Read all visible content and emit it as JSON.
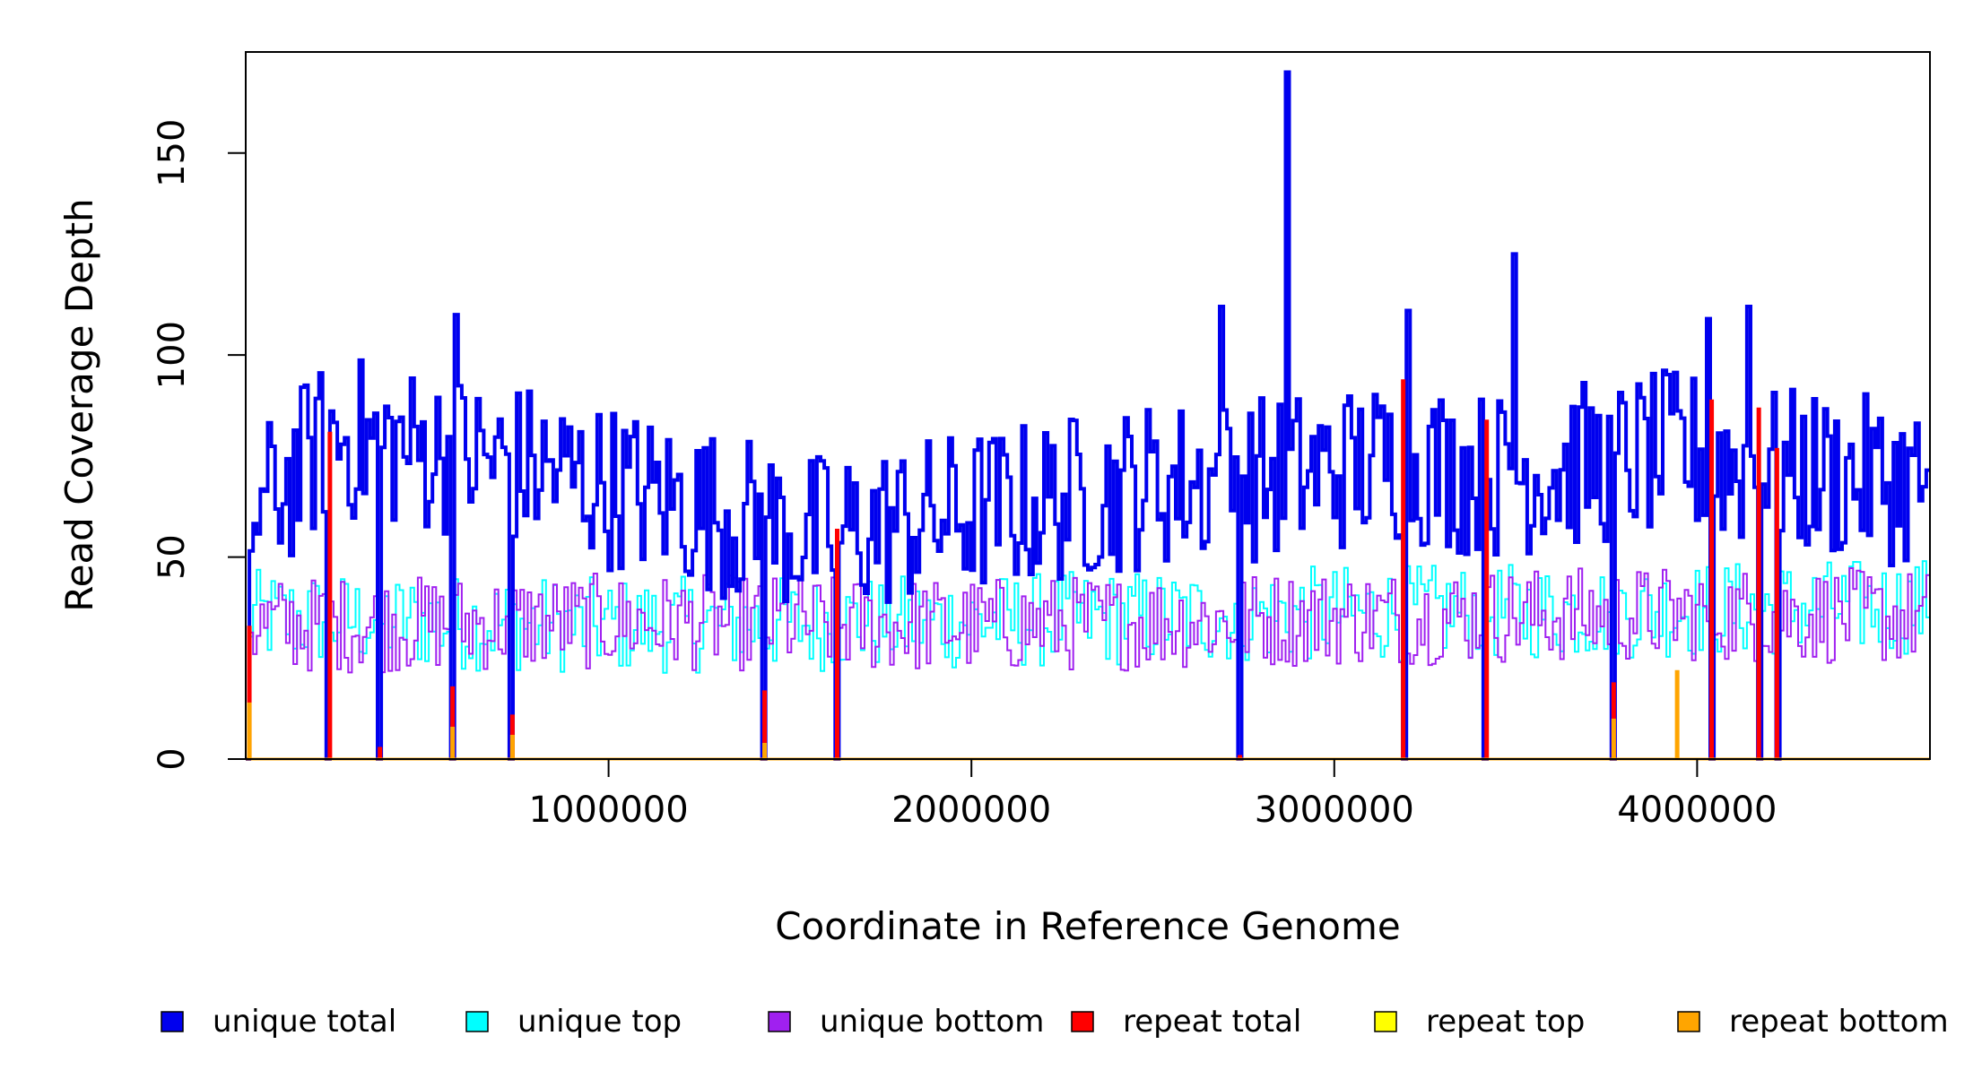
{
  "chart_data": {
    "type": "line",
    "title": "",
    "xlabel": "Coordinate in Reference Genome",
    "ylabel": "Read Coverage Depth",
    "xlim": [
      0,
      4641652
    ],
    "ylim": [
      0,
      175
    ],
    "x_ticks": [
      {
        "value": 1000000,
        "label": "1000000"
      },
      {
        "value": 2000000,
        "label": "2000000"
      },
      {
        "value": 3000000,
        "label": "3000000"
      },
      {
        "value": 4000000,
        "label": "4000000"
      }
    ],
    "y_ticks": [
      {
        "value": 0,
        "label": "0"
      },
      {
        "value": 50,
        "label": "50"
      },
      {
        "value": 100,
        "label": "100"
      },
      {
        "value": 150,
        "label": "150"
      }
    ],
    "grid": false,
    "legend_position": "bottom",
    "legend": [
      {
        "label": "unique total",
        "color": "#0000ee"
      },
      {
        "label": "unique top",
        "color": "#00ffff"
      },
      {
        "label": "unique bottom",
        "color": "#a020f0"
      },
      {
        "label": "repeat total",
        "color": "#ff0000"
      },
      {
        "label": "repeat top",
        "color": "#ffff00"
      },
      {
        "label": "repeat bottom",
        "color": "#ffa500"
      }
    ],
    "series": [
      {
        "name": "unique total",
        "color": "#0000ee",
        "x": [
          0,
          232000,
          800000,
          1570000,
          2500000,
          2860000,
          3180000,
          3420000,
          3960000,
          4120000,
          4641652
        ],
        "values": [
          58,
          80,
          72,
          55,
          68,
          70,
          74,
          70,
          76,
          72,
          68
        ]
      },
      {
        "name": "unique top",
        "color": "#00ffff",
        "x": [
          0,
          1000000,
          2000000,
          3000000,
          4000000,
          4641652
        ],
        "values": [
          35,
          33,
          34,
          36,
          37,
          38
        ]
      },
      {
        "name": "unique bottom",
        "color": "#a020f0",
        "x": [
          0,
          1000000,
          2000000,
          3000000,
          4000000,
          4641652
        ],
        "values": [
          33,
          34,
          33,
          35,
          36,
          35
        ]
      },
      {
        "name": "repeat total",
        "color": "#ff0000",
        "x": [
          10000,
          232000,
          370000,
          570000,
          735000,
          1430000,
          1630000,
          2740000,
          3190000,
          3420000,
          3770000,
          4040000,
          4170000,
          4220000
        ],
        "values": [
          33,
          81,
          3,
          18,
          11,
          17,
          57,
          1,
          94,
          84,
          19,
          89,
          87,
          77
        ]
      },
      {
        "name": "repeat top",
        "color": "#ffff00",
        "x": [
          0,
          4641652
        ],
        "values": [
          0,
          0
        ]
      },
      {
        "name": "repeat bottom",
        "color": "#ffa500",
        "x": [
          10000,
          570000,
          735000,
          1430000,
          3770000,
          3945000
        ],
        "values": [
          14,
          8,
          6,
          4,
          10,
          22
        ]
      }
    ],
    "spikes": [
      {
        "x": 2870000,
        "value": 170
      },
      {
        "x": 3500000,
        "value": 125
      },
      {
        "x": 2690000,
        "value": 112
      },
      {
        "x": 4140000,
        "value": 112
      },
      {
        "x": 585000,
        "value": 110
      },
      {
        "x": 4030000,
        "value": 109
      },
      {
        "x": 3200000,
        "value": 111
      }
    ]
  }
}
